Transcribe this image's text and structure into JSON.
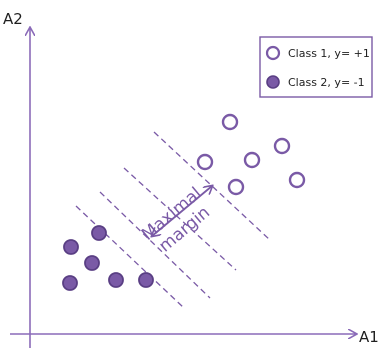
{
  "axes": {
    "x_label": "A1",
    "y_label": "A2"
  },
  "legend": {
    "class1_label": "Class 1, y= +1",
    "class2_label": "Class 2, y= -1"
  },
  "annotation": {
    "line1": "Maximal",
    "line2": "margin"
  },
  "colors": {
    "axis": "#8a6ab8",
    "class_stroke": "#7a5aa6",
    "class2_fill": "#7a5aa6",
    "dash_line": "#7a5aa6",
    "text": "#1f1f1f"
  },
  "chart_data": {
    "type": "scatter",
    "xlabel": "A1",
    "ylabel": "A2",
    "grid": false,
    "legend_position": "top-right",
    "series": [
      {
        "name": "Class 1, y= +1",
        "marker": "hollow-circle"
      },
      {
        "name": "Class 2, y= -1",
        "marker": "filled-circle"
      }
    ]
  }
}
